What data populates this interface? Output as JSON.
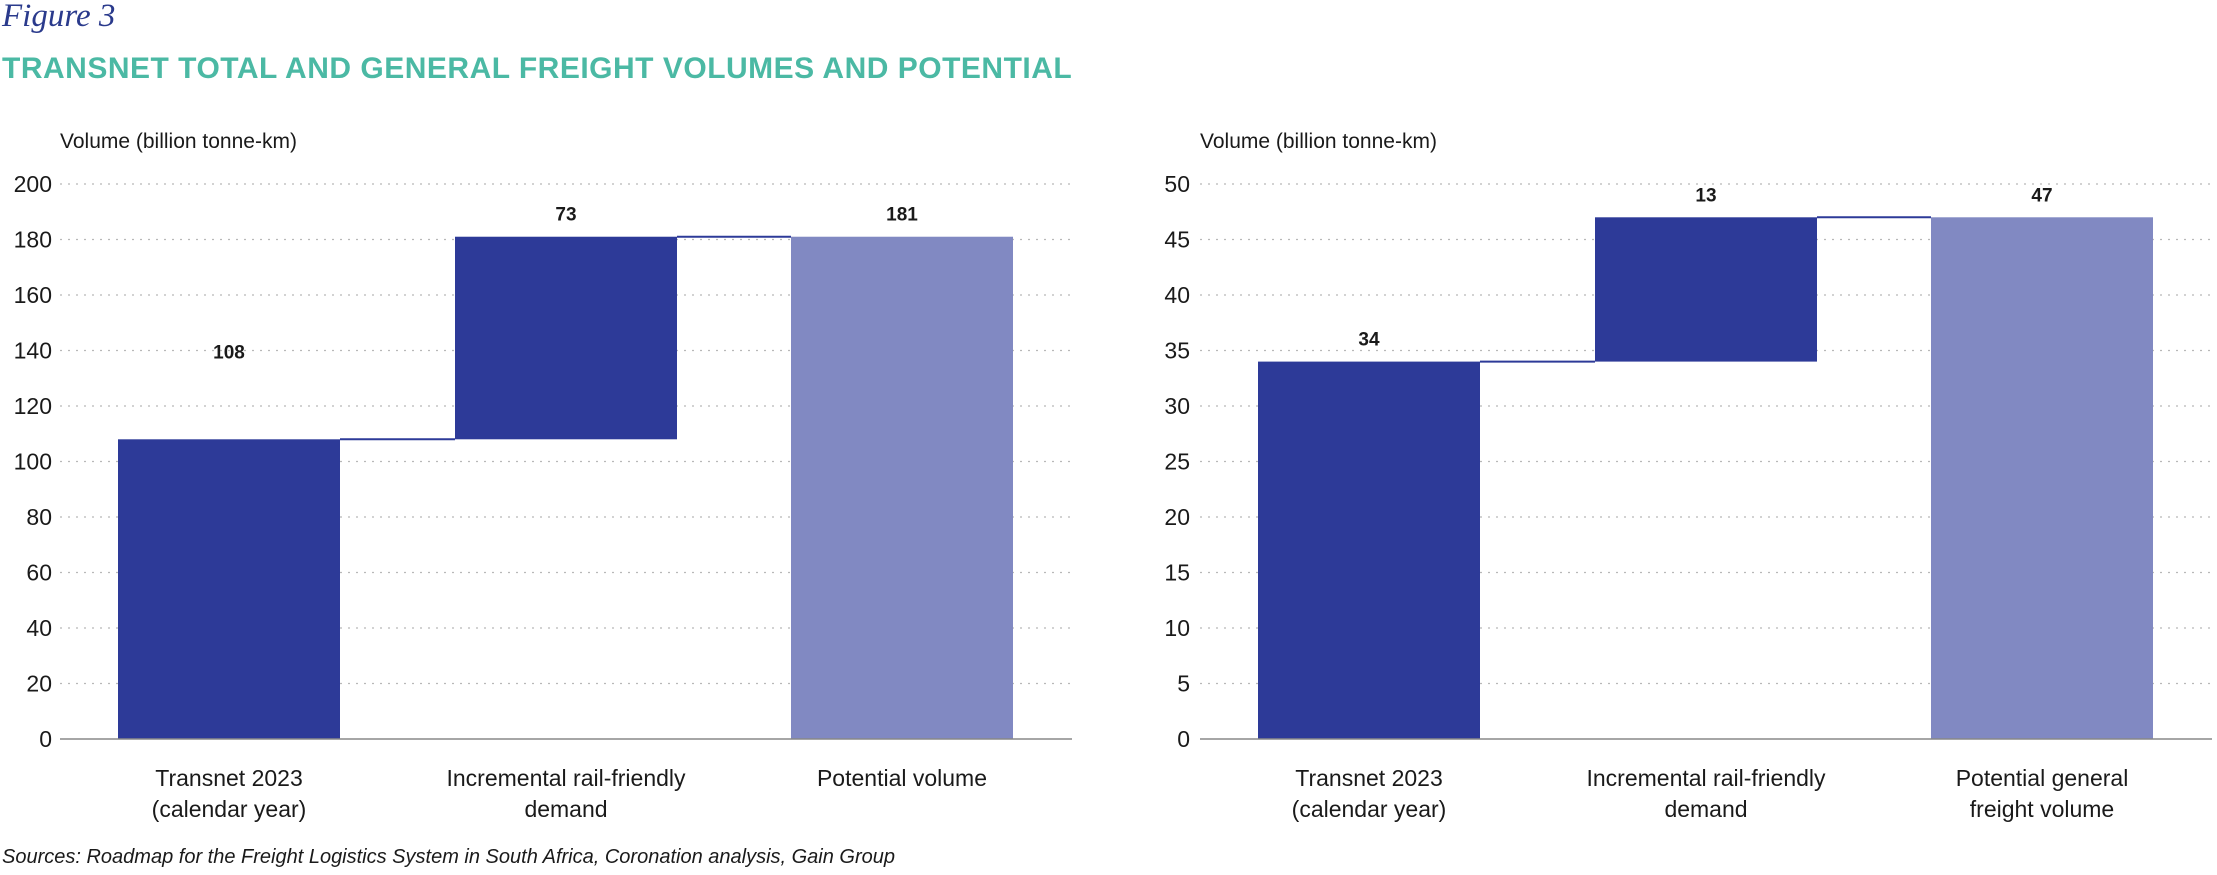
{
  "figure_label": "Figure 3",
  "title": "TRANSNET TOTAL AND GENERAL FREIGHT VOLUMES AND POTENTIAL",
  "sources": "Sources: Roadmap for the Freight Logistics System in South Africa, Coronation analysis, Gain Group",
  "colors": {
    "dark_bar": "#2d3a98",
    "light_bar": "#8189c2",
    "title": "#4bb9a4",
    "axis": "#888888",
    "grid": "#b8b8b8"
  },
  "chart_data": [
    {
      "type": "bar",
      "subtype": "waterfall",
      "ylabel": "Volume (billion tonne-km)",
      "ylim": [
        0,
        200
      ],
      "yticks": [
        "0",
        "20",
        "40",
        "60",
        "80",
        "100",
        "120",
        "140",
        "160",
        "180",
        "200"
      ],
      "grid": "dotted horizontal",
      "categories": [
        [
          "Transnet 2023",
          "(calendar year)"
        ],
        [
          "Incremental rail-friendly",
          "demand"
        ],
        [
          "Potential volume"
        ]
      ],
      "values": [
        108,
        73,
        181
      ],
      "bar_bases": [
        0,
        108,
        0
      ],
      "value_labels": [
        "108",
        "73",
        "181"
      ],
      "bar_types": [
        "dark",
        "dark",
        "light"
      ]
    },
    {
      "type": "bar",
      "subtype": "waterfall",
      "ylabel": "Volume (billion tonne-km)",
      "ylim": [
        0,
        50
      ],
      "yticks": [
        "0",
        "5",
        "10",
        "15",
        "20",
        "25",
        "30",
        "35",
        "40",
        "45",
        "50"
      ],
      "grid": "dotted horizontal",
      "categories": [
        [
          "Transnet 2023",
          "(calendar year)"
        ],
        [
          "Incremental rail-friendly",
          "demand"
        ],
        [
          "Potential general",
          "freight volume"
        ]
      ],
      "values": [
        34,
        13,
        47
      ],
      "bar_bases": [
        0,
        34,
        0
      ],
      "value_labels": [
        "34",
        "13",
        "47"
      ],
      "bar_types": [
        "dark",
        "dark",
        "light"
      ]
    }
  ]
}
